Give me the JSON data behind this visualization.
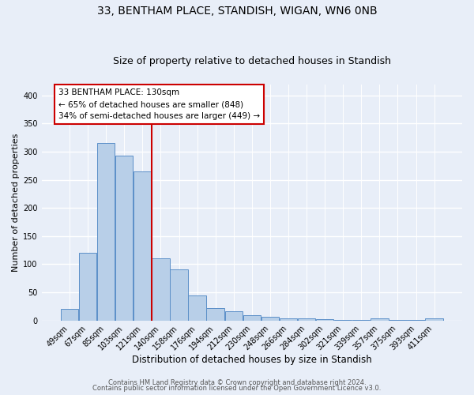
{
  "title1": "33, BENTHAM PLACE, STANDISH, WIGAN, WN6 0NB",
  "title2": "Size of property relative to detached houses in Standish",
  "xlabel": "Distribution of detached houses by size in Standish",
  "ylabel": "Number of detached properties",
  "bar_labels": [
    "49sqm",
    "67sqm",
    "85sqm",
    "103sqm",
    "121sqm",
    "140sqm",
    "158sqm",
    "176sqm",
    "194sqm",
    "212sqm",
    "230sqm",
    "248sqm",
    "266sqm",
    "284sqm",
    "302sqm",
    "321sqm",
    "339sqm",
    "357sqm",
    "375sqm",
    "393sqm",
    "411sqm"
  ],
  "bar_values": [
    20,
    120,
    315,
    293,
    265,
    110,
    90,
    44,
    22,
    16,
    9,
    6,
    4,
    3,
    2,
    1,
    1,
    4,
    1,
    1,
    3
  ],
  "bar_color": "#b8cfe8",
  "bar_edge_color": "#5b8fc8",
  "vline_x": 4.5,
  "vline_color": "#cc0000",
  "annotation_title": "33 BENTHAM PLACE: 130sqm",
  "annotation_line1": "← 65% of detached houses are smaller (848)",
  "annotation_line2": "34% of semi-detached houses are larger (449) →",
  "annotation_box_color": "#ffffff",
  "annotation_box_edge": "#cc0000",
  "ylim": [
    0,
    420
  ],
  "yticks": [
    0,
    50,
    100,
    150,
    200,
    250,
    300,
    350,
    400
  ],
  "footer1": "Contains HM Land Registry data © Crown copyright and database right 2024.",
  "footer2": "Contains public sector information licensed under the Open Government Licence v3.0.",
  "bg_color": "#e8eef8",
  "grid_color": "#ffffff",
  "title1_fontsize": 10,
  "title2_fontsize": 9,
  "xlabel_fontsize": 8.5,
  "ylabel_fontsize": 8,
  "tick_fontsize": 7,
  "footer_fontsize": 6,
  "ann_fontsize": 7.5
}
